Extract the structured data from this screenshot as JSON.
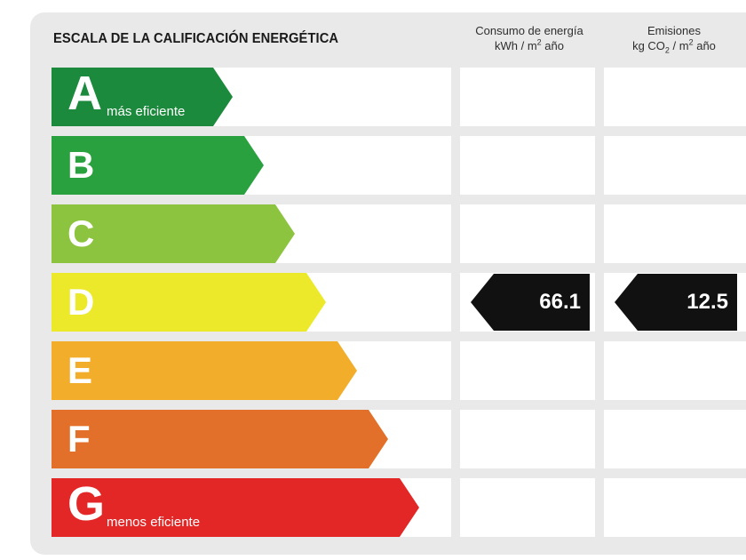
{
  "header": {
    "title": "ESCALA DE LA CALIFICACIÓN ENERGÉTICA",
    "consumption_line1": "Consumo de energía",
    "consumption_line2_unit": "kWh / m",
    "consumption_line2_exp": "2",
    "consumption_line2_tail": " año",
    "emissions_line1": "Emisiones",
    "emissions_line2_unit": "kg CO",
    "emissions_line2_sub": "2",
    "emissions_line2_mid": " / m",
    "emissions_line2_exp": "2",
    "emissions_line2_tail": " año"
  },
  "ratings": [
    {
      "letter": "A",
      "note": "más eficiente",
      "color": "#1b8a3c"
    },
    {
      "letter": "B",
      "note": "",
      "color": "#2aa13f"
    },
    {
      "letter": "C",
      "note": "",
      "color": "#8cc43f"
    },
    {
      "letter": "D",
      "note": "",
      "color": "#ebe92a"
    },
    {
      "letter": "E",
      "note": "",
      "color": "#f2ae2b"
    },
    {
      "letter": "F",
      "note": "",
      "color": "#e2702a"
    },
    {
      "letter": "G",
      "note": "menos eficiente",
      "color": "#e32726"
    }
  ],
  "result": {
    "rating": "D",
    "consumption": "66.1",
    "emissions": "12.5",
    "marker_color": "#111111"
  }
}
